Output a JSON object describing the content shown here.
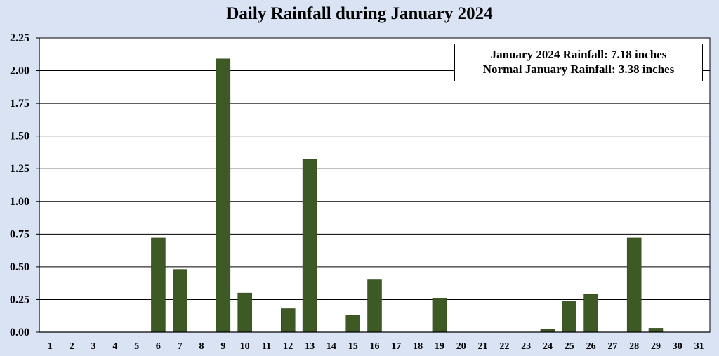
{
  "chart_data": {
    "type": "bar",
    "title": "Daily Rainfall during January 2024",
    "xlabel": "",
    "ylabel": "",
    "categories": [
      "1",
      "2",
      "3",
      "4",
      "5",
      "6",
      "7",
      "8",
      "9",
      "10",
      "11",
      "12",
      "13",
      "14",
      "15",
      "16",
      "17",
      "18",
      "19",
      "20",
      "21",
      "22",
      "23",
      "24",
      "25",
      "26",
      "27",
      "28",
      "29",
      "30",
      "31"
    ],
    "values": [
      0,
      0,
      0,
      0,
      0,
      0.72,
      0.48,
      0,
      2.09,
      0.3,
      0,
      0.18,
      1.32,
      0,
      0.13,
      0.4,
      0,
      0,
      0.26,
      0,
      0,
      0,
      0,
      0.02,
      0.24,
      0.29,
      0,
      0.72,
      0.03,
      0,
      0
    ],
    "ylim": [
      0,
      2.25
    ],
    "yticks": [
      "0.00",
      "0.25",
      "0.50",
      "0.75",
      "1.00",
      "1.25",
      "1.50",
      "1.75",
      "2.00",
      "2.25"
    ],
    "bar_color": "#3d5a24",
    "grid": true,
    "annotation": {
      "line1": "January 2024 Rainfall: 7.18 inches",
      "line2": "Normal January Rainfall: 3.38 inches"
    }
  }
}
